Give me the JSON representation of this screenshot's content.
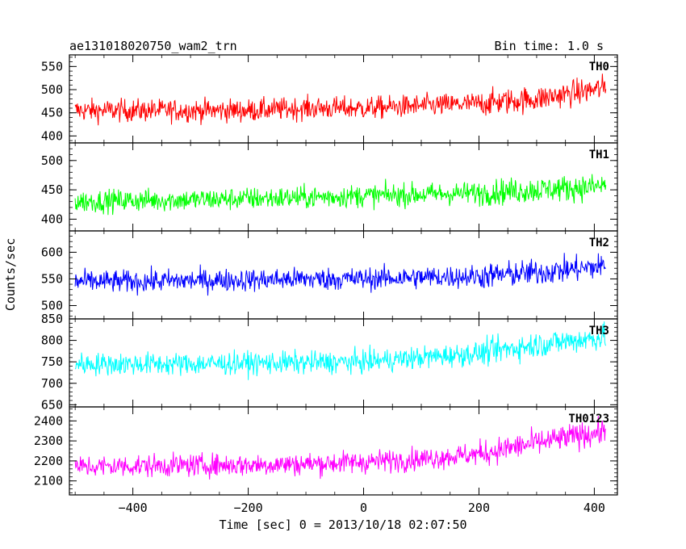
{
  "header": {
    "title": "ae131018020750_wam2_trn",
    "bin_time": "Bin time: 1.0 s"
  },
  "axes": {
    "ylabel": "Counts/sec",
    "xlabel": "Time [sec] 0 = 2013/10/18 02:07:50"
  },
  "chart_data": {
    "type": "line",
    "x_range": [
      -510,
      440
    ],
    "x_ticks": [
      -400,
      -200,
      0,
      200,
      400
    ],
    "x_tick_labels": [
      "−400",
      "−200",
      "0",
      "200",
      "400"
    ],
    "bin_time_s": 1.0,
    "panels": [
      {
        "name": "TH0",
        "color": "#ff0000",
        "ylim": [
          385,
          575
        ],
        "yticks": [
          400,
          450,
          500,
          550
        ],
        "series": [
          {
            "x": [
              -500,
              -400,
              -300,
              -200,
              -100,
              0,
              100,
              200,
              300,
              400,
              420
            ],
            "y": [
              455,
              455,
              455,
              455,
              460,
              460,
              465,
              470,
              480,
              500,
              505
            ]
          }
        ]
      },
      {
        "name": "TH1",
        "color": "#00ff00",
        "ylim": [
          380,
          530
        ],
        "yticks": [
          400,
          450,
          500
        ],
        "series": [
          {
            "x": [
              -500,
              -400,
              -300,
              -200,
              -100,
              0,
              100,
              200,
              300,
              400,
              420
            ],
            "y": [
              430,
              432,
              433,
              435,
              437,
              440,
              442,
              445,
              450,
              455,
              458
            ]
          }
        ]
      },
      {
        "name": "TH2",
        "color": "#0000ff",
        "ylim": [
          475,
          640
        ],
        "yticks": [
          500,
          550,
          600
        ],
        "series": [
          {
            "x": [
              -500,
              -400,
              -300,
              -200,
              -100,
              0,
              100,
              200,
              300,
              400,
              420
            ],
            "y": [
              545,
              545,
              547,
              548,
              550,
              550,
              553,
              555,
              562,
              572,
              575
            ]
          }
        ]
      },
      {
        "name": "TH3",
        "color": "#00ffff",
        "ylim": [
          645,
          850
        ],
        "yticks": [
          650,
          700,
          750,
          800,
          850
        ],
        "series": [
          {
            "x": [
              -500,
              -400,
              -300,
              -200,
              -100,
              0,
              100,
              200,
              300,
              400,
              420
            ],
            "y": [
              745,
              745,
              745,
              747,
              748,
              750,
              760,
              770,
              790,
              805,
              810
            ]
          }
        ]
      },
      {
        "name": "TH0123",
        "color": "#ff00ff",
        "ylim": [
          2030,
          2470
        ],
        "yticks": [
          2100,
          2200,
          2300,
          2400
        ],
        "series": [
          {
            "x": [
              -500,
              -400,
              -300,
              -200,
              -100,
              0,
              100,
              200,
              300,
              400,
              420
            ],
            "y": [
              2170,
              2175,
              2178,
              2180,
              2185,
              2195,
              2210,
              2235,
              2290,
              2340,
              2350
            ]
          }
        ]
      }
    ]
  }
}
